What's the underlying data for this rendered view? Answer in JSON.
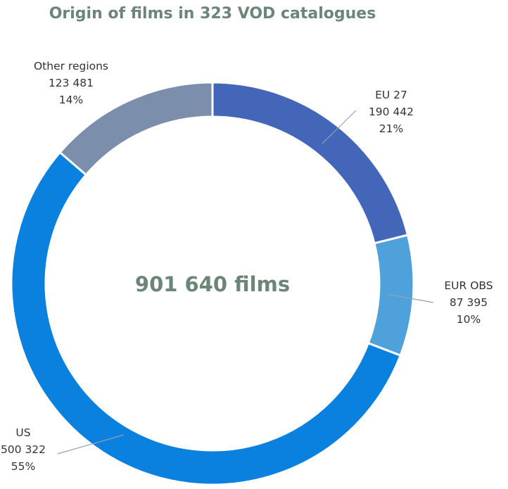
{
  "chart_data": {
    "type": "pie",
    "title": "Origin of films in 323 VOD catalogues",
    "center_label": "901 640 films",
    "total": 901640,
    "slices": [
      {
        "name": "EU 27",
        "value": 190442,
        "value_label": "190 442",
        "percent_label": "21%",
        "color": "#4466b8"
      },
      {
        "name": "EUR OBS",
        "value": 87395,
        "value_label": "87 395",
        "percent_label": "10%",
        "color": "#4fa1dc"
      },
      {
        "name": "US",
        "value": 500322,
        "value_label": "500 322",
        "percent_label": "55%",
        "color": "#0a80df"
      },
      {
        "name": "Other regions",
        "value": 123481,
        "value_label": "123 481",
        "percent_label": "14%",
        "color": "#7b8eac"
      }
    ]
  }
}
